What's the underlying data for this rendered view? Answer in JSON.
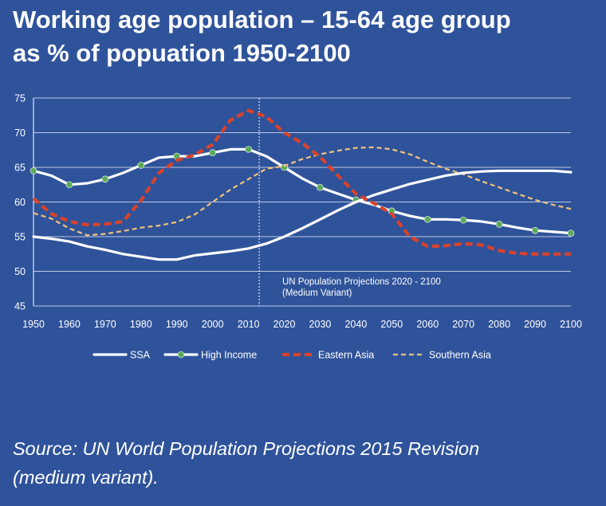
{
  "title_lines": [
    "Working age population – 15-64 age group",
    "as % of popuation 1950-2100"
  ],
  "source_lines": [
    "Source: UN World Population Projections 2015 Revision",
    "(medium variant)."
  ],
  "chart_data": {
    "type": "line",
    "xlabel": "",
    "ylabel": "",
    "xlim": [
      1950,
      2100
    ],
    "ylim": [
      45,
      75
    ],
    "x_ticks": [
      1950,
      1960,
      1970,
      1980,
      1990,
      2000,
      2010,
      2020,
      2030,
      2040,
      2050,
      2060,
      2070,
      2080,
      2090,
      2100
    ],
    "y_ticks": [
      45,
      50,
      55,
      60,
      65,
      70,
      75
    ],
    "grid": "horizontal",
    "legend_position": "bottom",
    "background_color": "#2f539b",
    "annotation": {
      "divider_x": 2013,
      "lines": [
        "UN Population Projections 2020 - 2100",
        "(Medium Variant)"
      ]
    },
    "series": [
      {
        "name": "SSA",
        "color": "#ffffff",
        "style": "solid",
        "x": [
          1950,
          1955,
          1960,
          1965,
          1970,
          1975,
          1980,
          1985,
          1990,
          1995,
          2000,
          2005,
          2010,
          2015,
          2020,
          2025,
          2030,
          2035,
          2040,
          2045,
          2050,
          2055,
          2060,
          2065,
          2070,
          2075,
          2080,
          2085,
          2090,
          2095,
          2100
        ],
        "values": [
          55.0,
          54.7,
          54.3,
          53.6,
          53.1,
          52.5,
          52.1,
          51.7,
          51.7,
          52.3,
          52.6,
          52.9,
          53.3,
          54.0,
          55.0,
          56.2,
          57.5,
          58.8,
          60.0,
          61.0,
          61.8,
          62.6,
          63.2,
          63.8,
          64.2,
          64.4,
          64.5,
          64.5,
          64.5,
          64.5,
          64.3
        ]
      },
      {
        "name": "High Income",
        "color": "#ffffff",
        "marker_color": "#5aaa5a",
        "style": "solid-with-markers",
        "x": [
          1950,
          1955,
          1960,
          1965,
          1970,
          1975,
          1980,
          1985,
          1990,
          1995,
          2000,
          2005,
          2010,
          2015,
          2020,
          2025,
          2030,
          2035,
          2040,
          2045,
          2050,
          2055,
          2060,
          2065,
          2070,
          2075,
          2080,
          2085,
          2090,
          2095,
          2100
        ],
        "values": [
          64.5,
          63.8,
          62.5,
          62.7,
          63.3,
          64.2,
          65.3,
          66.4,
          66.6,
          66.6,
          67.1,
          67.6,
          67.6,
          66.6,
          65.0,
          63.4,
          62.1,
          61.2,
          60.3,
          59.6,
          58.7,
          58.0,
          57.5,
          57.5,
          57.4,
          57.2,
          56.8,
          56.3,
          55.9,
          55.7,
          55.5
        ]
      },
      {
        "name": "Eastern Asia",
        "color": "#d9422b",
        "style": "dashed",
        "x": [
          1950,
          1955,
          1960,
          1965,
          1970,
          1975,
          1980,
          1985,
          1990,
          1995,
          2000,
          2005,
          2010,
          2015,
          2020,
          2025,
          2030,
          2035,
          2040,
          2045,
          2050,
          2055,
          2060,
          2065,
          2070,
          2075,
          2080,
          2085,
          2090,
          2095,
          2100
        ],
        "values": [
          60.5,
          58.3,
          57.2,
          56.7,
          56.8,
          57.2,
          60.2,
          64.2,
          66.0,
          66.8,
          68.3,
          71.8,
          73.2,
          72.3,
          70.0,
          68.5,
          66.5,
          63.8,
          61.2,
          59.8,
          58.3,
          55.0,
          53.6,
          53.7,
          54.0,
          53.8,
          53.0,
          52.6,
          52.5,
          52.5,
          52.5
        ]
      },
      {
        "name": "Southern Asia",
        "color": "#f5c27a",
        "style": "dashed-thin",
        "x": [
          1950,
          1955,
          1960,
          1965,
          1970,
          1975,
          1980,
          1985,
          1990,
          1995,
          2000,
          2005,
          2010,
          2015,
          2020,
          2025,
          2030,
          2035,
          2040,
          2045,
          2050,
          2055,
          2060,
          2065,
          2070,
          2075,
          2080,
          2085,
          2090,
          2095,
          2100
        ],
        "values": [
          58.4,
          57.6,
          56.2,
          55.2,
          55.4,
          55.8,
          56.3,
          56.6,
          57.1,
          58.2,
          60.0,
          61.8,
          63.3,
          64.8,
          65.2,
          66.2,
          66.9,
          67.4,
          67.8,
          67.9,
          67.6,
          66.9,
          65.8,
          64.8,
          64.0,
          63.0,
          62.1,
          61.2,
          60.3,
          59.6,
          59.0
        ]
      }
    ]
  }
}
